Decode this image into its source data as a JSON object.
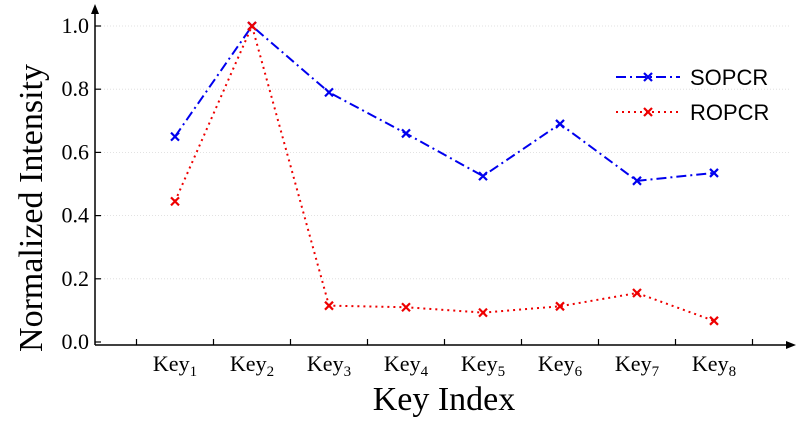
{
  "chart_data": {
    "type": "line",
    "categories": [
      {
        "base": "Key",
        "sub": "1"
      },
      {
        "base": "Key",
        "sub": "2"
      },
      {
        "base": "Key",
        "sub": "3"
      },
      {
        "base": "Key",
        "sub": "4"
      },
      {
        "base": "Key",
        "sub": "5"
      },
      {
        "base": "Key",
        "sub": "6"
      },
      {
        "base": "Key",
        "sub": "7"
      },
      {
        "base": "Key",
        "sub": "8"
      }
    ],
    "series": [
      {
        "name": "SOPCR",
        "color": "#0000ee",
        "line_style": "dash-dot",
        "marker": "x",
        "values": [
          0.65,
          1.0,
          0.79,
          0.66,
          0.525,
          0.69,
          0.51,
          0.535
        ]
      },
      {
        "name": "ROPCR",
        "color": "#ee0000",
        "line_style": "dotted",
        "marker": "x",
        "values": [
          0.445,
          1.0,
          0.115,
          0.11,
          0.093,
          0.113,
          0.155,
          0.067
        ]
      }
    ],
    "title": "",
    "xlabel": "Key Index",
    "ylabel": "Normalized Intensity",
    "ylim": [
      0,
      1.0
    ],
    "yticks": [
      "0.0",
      "0.2",
      "0.4",
      "0.6",
      "0.8",
      "1.0"
    ],
    "grid": true,
    "legend_position": "top-right"
  }
}
